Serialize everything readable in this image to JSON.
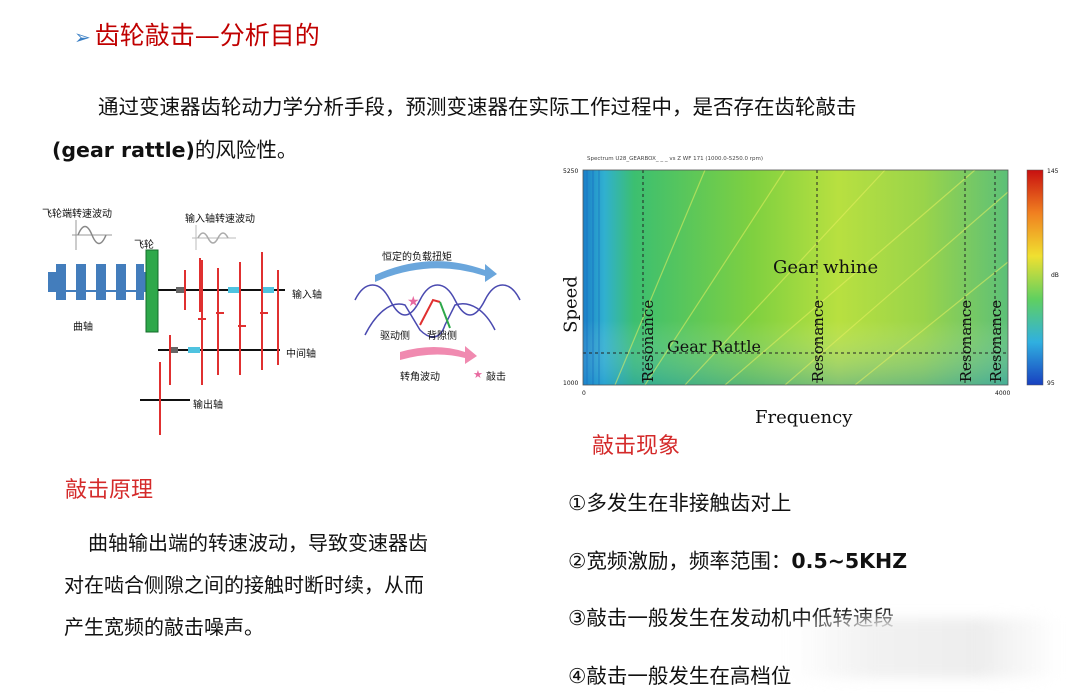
{
  "title": "齿轮敲击—分析目的",
  "intro": {
    "line1": "通过变速器齿轮动力学分析手段，预测变速器在实际工作过程中，是否存在齿轮敲击",
    "line2_en": "(gear rattle)",
    "line2_zh": "的风险性。"
  },
  "diagram": {
    "flywheel_fluct": "飞轮端转速波动",
    "input_fluct": "输入轴转速波动",
    "flywheel": "飞轮",
    "crankshaft": "曲轴",
    "input_shaft": "输入轴",
    "middle_shaft": "中间轴",
    "output_shaft": "输出轴",
    "constant_torque": "恒定的负载扭矩",
    "drive_side": "驱动侧",
    "back_side": "背隙侧",
    "angular_fluct": "转角波动",
    "rattle": "敲击"
  },
  "spectrogram": {
    "header": "Spectrum U28_GEARBOX_ _ _ vs Z WF 171 (1000.0-5250.0 rpm)",
    "speed_top": "5250",
    "speed_bottom": "1000",
    "freq_left": "0",
    "freq_right": "4000",
    "ylabel": "Speed",
    "xlabel": "Frequency",
    "gear_whine": "Gear whine",
    "gear_rattle": "Gear Rattle",
    "resonance": "Resonance",
    "scale_top": "145",
    "scale_bottom": "95",
    "scale_unit": "dB"
  },
  "principle": {
    "heading": "敲击原理",
    "line1": "曲轴输出端的转速波动，导致变速器齿",
    "line2": "对在啮合侧隙之间的接触时断时续，从而",
    "line3": "产生宽频的敲击噪声。"
  },
  "phenomena": {
    "heading": "敲击现象",
    "item1": "①多发生在非接触齿对上",
    "item2_zh": "②宽频激励，频率范围：",
    "item2_val": "0.5~5KHZ",
    "item3": "③敲击一般发生在发动机中低转速段",
    "item4": "④敲击一般发生在高档位"
  },
  "colors": {
    "title": "#c00000",
    "heading_red": "#d42a2a",
    "gear_red": "#e03030",
    "shaft_cyan": "#4fc3e0",
    "flywheel_green": "#2ea84a",
    "crank_blue": "#2f6fb5"
  }
}
